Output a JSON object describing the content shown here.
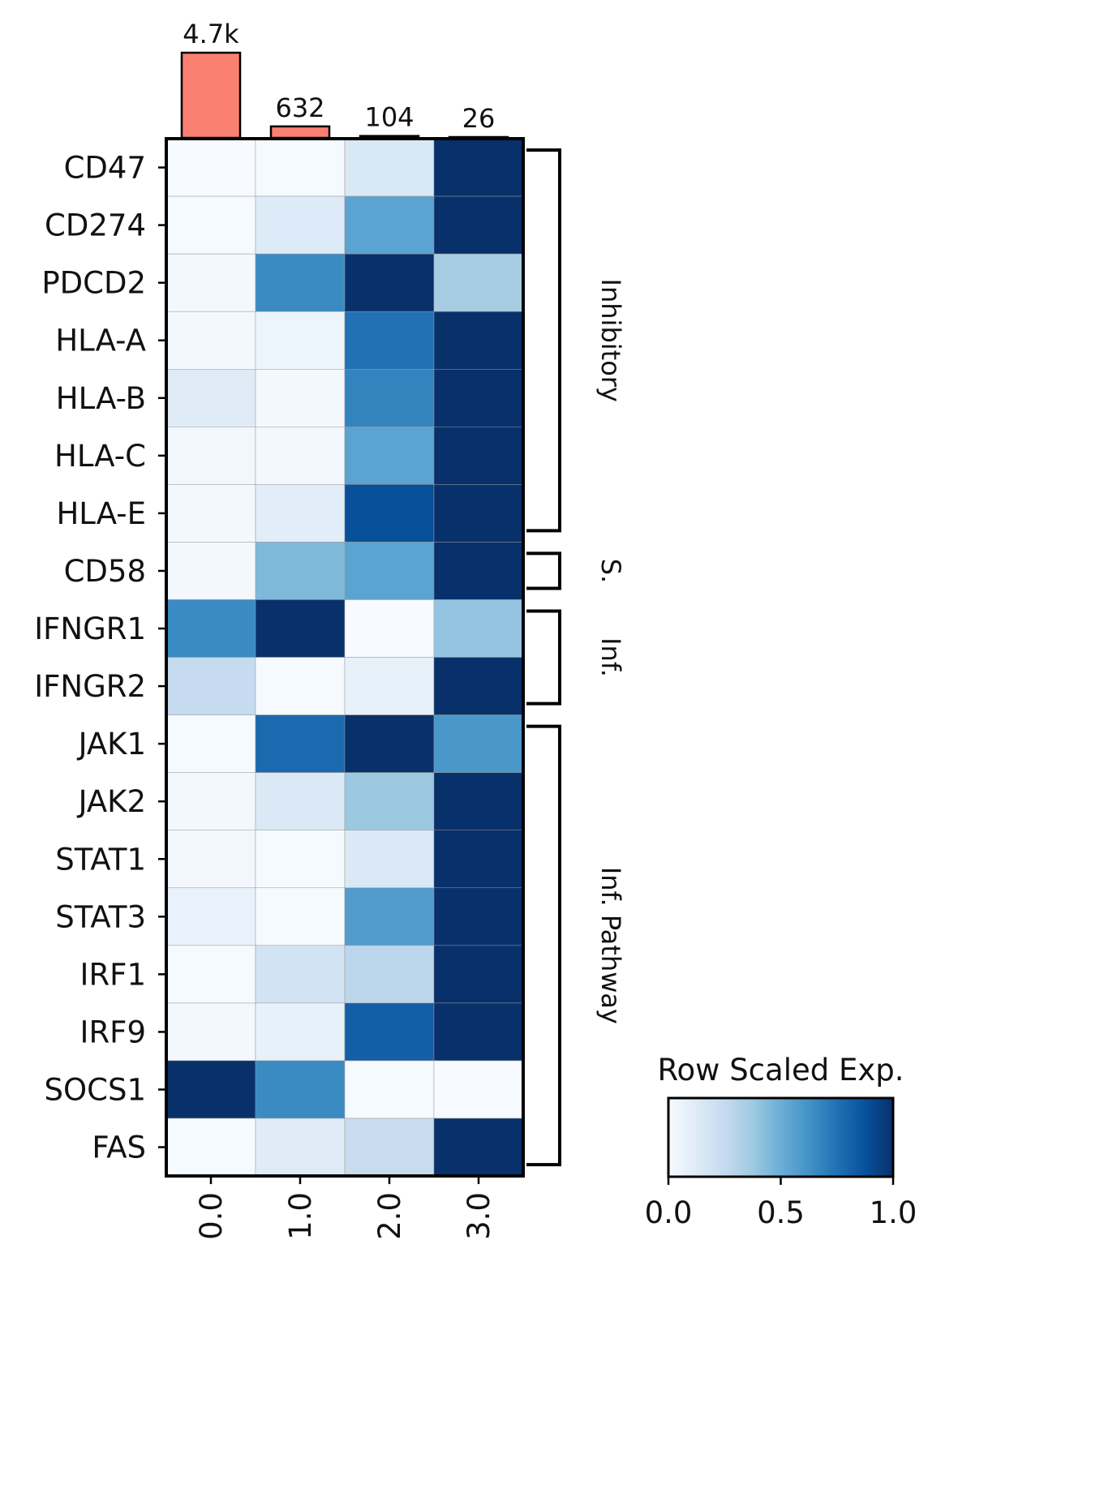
{
  "chart_data": {
    "type": "heatmap",
    "title": "",
    "xlabel": "",
    "ylabel": "",
    "colormap": "Blues",
    "x": [
      "0.0",
      "1.0",
      "2.0",
      "3.0"
    ],
    "y": [
      "CD47",
      "CD274",
      "PDCD2",
      "HLA-A",
      "HLA-B",
      "HLA-C",
      "HLA-E",
      "CD58",
      "IFNGR1",
      "IFNGR2",
      "JAK1",
      "JAK2",
      "STAT1",
      "STAT3",
      "IRF1",
      "IRF9",
      "SOCS1",
      "FAS"
    ],
    "values": [
      [
        0.0,
        0.01,
        0.15,
        1.0
      ],
      [
        0.01,
        0.13,
        0.55,
        1.0
      ],
      [
        0.02,
        0.65,
        1.0,
        0.35
      ],
      [
        0.02,
        0.05,
        0.75,
        1.0
      ],
      [
        0.12,
        0.02,
        0.68,
        1.0
      ],
      [
        0.03,
        0.02,
        0.55,
        1.0
      ],
      [
        0.02,
        0.11,
        0.88,
        1.0
      ],
      [
        0.02,
        0.45,
        0.55,
        1.0
      ],
      [
        0.65,
        1.0,
        0.0,
        0.4
      ],
      [
        0.25,
        0.01,
        0.08,
        1.0
      ],
      [
        0.01,
        0.78,
        1.0,
        0.6
      ],
      [
        0.02,
        0.14,
        0.38,
        1.0
      ],
      [
        0.03,
        0.01,
        0.14,
        1.0
      ],
      [
        0.07,
        0.01,
        0.58,
        1.0
      ],
      [
        0.01,
        0.19,
        0.28,
        1.0
      ],
      [
        0.02,
        0.08,
        0.82,
        1.0
      ],
      [
        1.0,
        0.65,
        0.01,
        0.0
      ],
      [
        0.01,
        0.12,
        0.24,
        1.0
      ]
    ],
    "bar_counts": {
      "labels": [
        "4.7k",
        "632",
        "104",
        "26"
      ],
      "values": [
        4700,
        632,
        104,
        26
      ],
      "color": "#fa8072"
    },
    "groups": [
      {
        "label": "Inhibitory",
        "start": 0,
        "end": 6
      },
      {
        "label": "S.",
        "start": 7,
        "end": 7
      },
      {
        "label": "Inf.",
        "start": 8,
        "end": 9
      },
      {
        "label": "Inf. Pathway",
        "start": 10,
        "end": 17
      }
    ],
    "colorbar": {
      "title": "Row Scaled Exp.",
      "ticks": [
        "0.0",
        "0.5",
        "1.0"
      ],
      "range": [
        0,
        1
      ]
    }
  }
}
